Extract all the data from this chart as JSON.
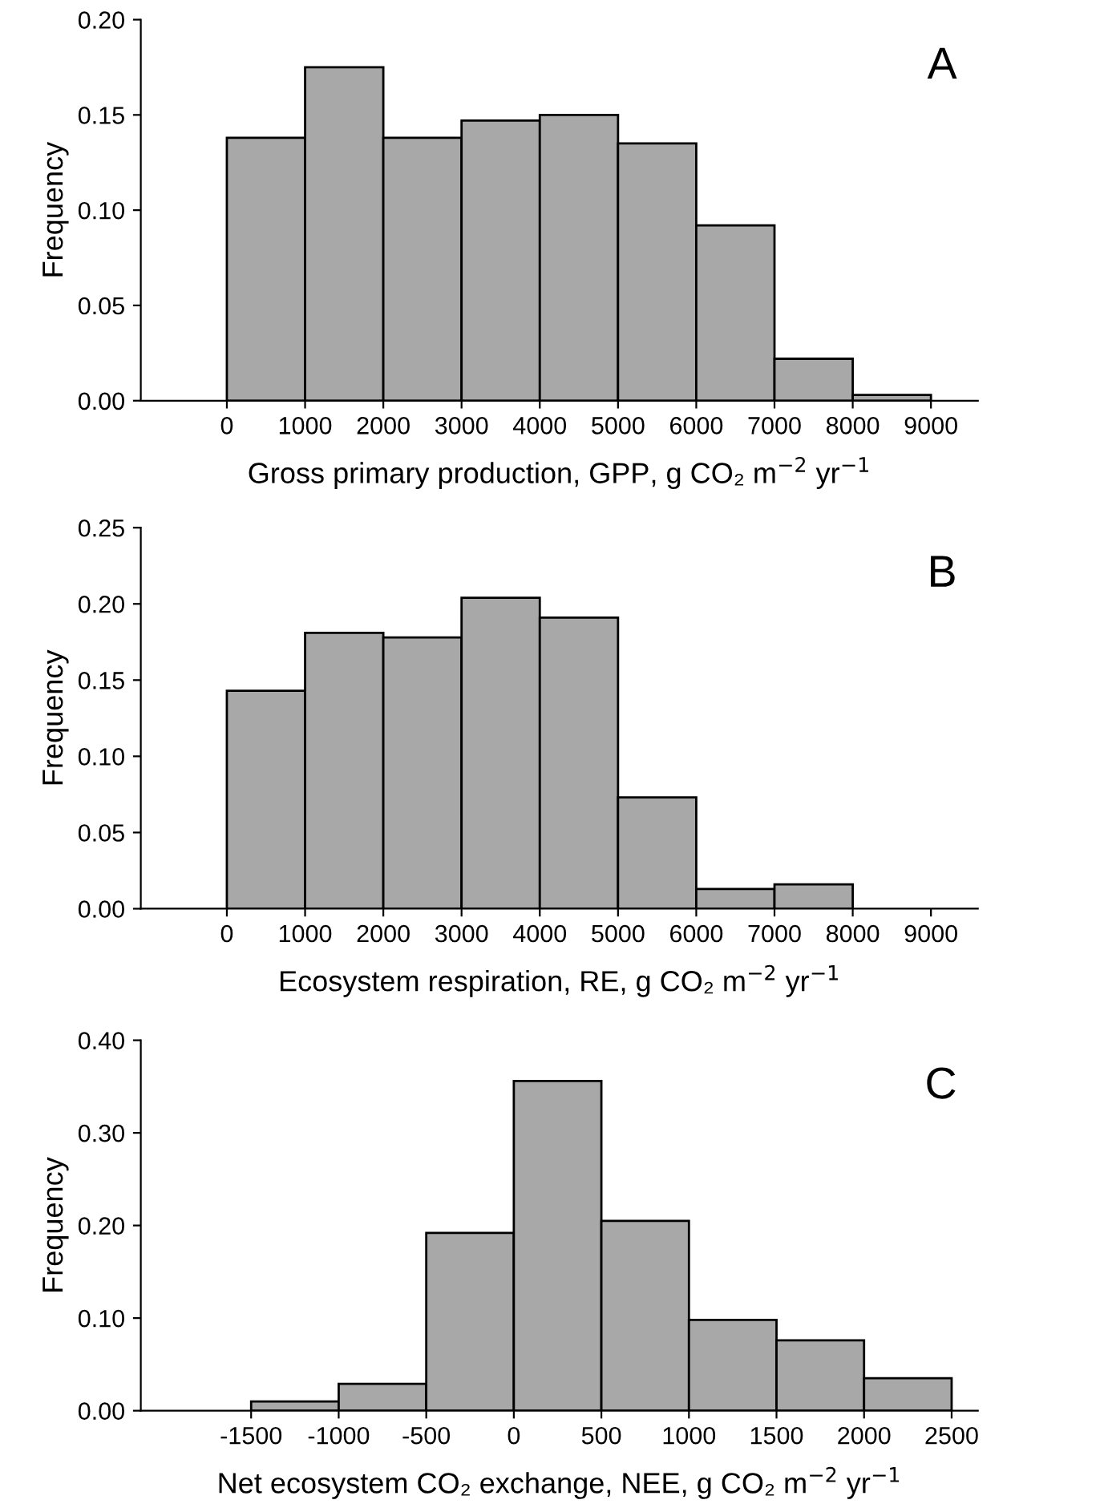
{
  "chart_data": [
    {
      "type": "histogram",
      "bins": [
        0,
        1000,
        2000,
        3000,
        4000,
        5000,
        6000,
        7000,
        8000,
        9000
      ],
      "values": [
        0.138,
        0.175,
        0.138,
        0.147,
        0.15,
        0.135,
        0.092,
        0.022,
        0.003
      ],
      "color": "#a8a8a8",
      "xlabel": "Gross primary production, GPP, g CO₂ m$^{−2}$ yr$^{−1}$",
      "ylabel": "Frequency",
      "annotations": [
        "A"
      ],
      "xlim": [
        -1100,
        9600
      ],
      "xticks": [
        0,
        1000,
        2000,
        3000,
        4000,
        5000,
        6000,
        7000,
        8000,
        9000
      ],
      "ylim": [
        0,
        0.2
      ],
      "yticks": [
        {
          "value": 0,
          "label": "0.00"
        },
        {
          "value": 0.05,
          "label": "0.05"
        },
        {
          "value": 0.1,
          "label": "0.10"
        },
        {
          "value": 0.15,
          "label": "0.15"
        },
        {
          "value": 0.2,
          "label": "0.20"
        }
      ],
      "grid": false,
      "legend": false
    },
    {
      "type": "histogram",
      "bins": [
        0,
        1000,
        2000,
        3000,
        4000,
        5000,
        6000,
        7000,
        8000
      ],
      "values": [
        0.143,
        0.181,
        0.178,
        0.204,
        0.191,
        0.073,
        0.013,
        0.016
      ],
      "color": "#a8a8a8",
      "xlabel": "Ecosystem respiration, RE, g CO₂ m$^{−2}$ yr$^{−1}$",
      "ylabel": "Frequency",
      "annotations": [
        "B"
      ],
      "xlim": [
        -1100,
        9600
      ],
      "xticks": [
        0,
        1000,
        2000,
        3000,
        4000,
        5000,
        6000,
        7000,
        8000,
        9000
      ],
      "ylim": [
        0,
        0.25
      ],
      "yticks": [
        {
          "value": 0,
          "label": "0.00"
        },
        {
          "value": 0.05,
          "label": "0.05"
        },
        {
          "value": 0.1,
          "label": "0.10"
        },
        {
          "value": 0.15,
          "label": "0.15"
        },
        {
          "value": 0.2,
          "label": "0.20"
        },
        {
          "value": 0.25,
          "label": "0.25"
        }
      ],
      "grid": false,
      "legend": false
    },
    {
      "type": "histogram",
      "bins": [
        -1500,
        -1000,
        -500,
        0,
        500,
        1000,
        1500,
        2000,
        2500
      ],
      "values": [
        0.01,
        0.029,
        0.192,
        0.356,
        0.205,
        0.098,
        0.076,
        0.035
      ],
      "color": "#a8a8a8",
      "xlabel": "Net ecosystem CO₂ exchange, NEE, g CO₂ m$^{−2}$ yr$^{−1}$",
      "ylabel": "Frequency",
      "annotations": [
        "C"
      ],
      "xlim": [
        -2130,
        2650
      ],
      "xticks": [
        -1500,
        -1000,
        -500,
        0,
        500,
        1000,
        1500,
        2000,
        2500
      ],
      "ylim": [
        0,
        0.4
      ],
      "yticks": [
        {
          "value": 0,
          "label": "0.00"
        },
        {
          "value": 0.1,
          "label": "0.10"
        },
        {
          "value": 0.2,
          "label": "0.20"
        },
        {
          "value": 0.3,
          "label": "0.30"
        },
        {
          "value": 0.4,
          "label": "0.40"
        }
      ],
      "grid": false,
      "legend": false
    }
  ]
}
